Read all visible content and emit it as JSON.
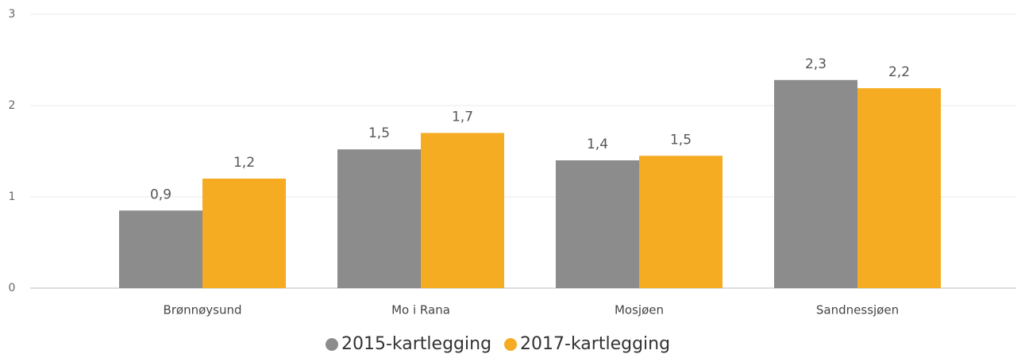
{
  "chart_data": {
    "type": "bar",
    "categories": [
      "Brønnøysund",
      "Mo i Rana",
      "Mosjøen",
      "Sandnessjøen"
    ],
    "series": [
      {
        "name": "2015-kartlegging",
        "color": "#8c8c8c",
        "values": [
          0.85,
          1.52,
          1.4,
          2.28
        ],
        "value_labels": [
          "0,9",
          "1,5",
          "1,4",
          "2,3"
        ]
      },
      {
        "name": "2017-kartlegging",
        "color": "#f5ab22",
        "values": [
          1.2,
          1.7,
          1.45,
          2.19
        ],
        "value_labels": [
          "1,2",
          "1,7",
          "1,5",
          "2,2"
        ]
      }
    ],
    "ylim": [
      0,
      3
    ],
    "yticks": [
      0,
      1,
      2,
      3
    ],
    "grid": true,
    "legend": "bottom"
  }
}
